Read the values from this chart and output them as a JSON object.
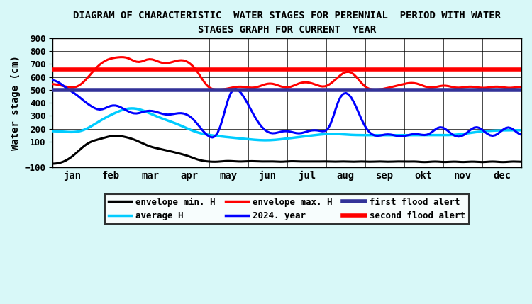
{
  "title": "DIAGRAM OF CHARACTERISTIC  WATER STAGES FOR PERENNIAL  PERIOD WITH WATER\nSTAGES GRAPH FOR CURRENT  YEAR",
  "ylabel": "Water stage (cm)",
  "xlabel_ticks": [
    "jan",
    "feb",
    "mar",
    "apr",
    "may",
    "jun",
    "jul",
    "aug",
    "sep",
    "okt",
    "nov",
    "dec"
  ],
  "ylim": [
    -100,
    900
  ],
  "yticks": [
    -100,
    100,
    200,
    300,
    400,
    500,
    600,
    700,
    800,
    900
  ],
  "background_color": "#d8f8f8",
  "plot_bg_color": "#ffffff",
  "first_flood_alert": 500,
  "second_flood_alert": 660,
  "envelope_max_color": "#ff0000",
  "envelope_min_color": "#000000",
  "average_color": "#00ccff",
  "year2024_color": "#0000ff",
  "first_alert_color": "#333399",
  "second_alert_color": "#ff0000",
  "envelope_min_data": [
    -70,
    -75,
    -72,
    -68,
    -60,
    -50,
    -40,
    -25,
    -10,
    10,
    30,
    50,
    70,
    90,
    100,
    105,
    110,
    115,
    120,
    125,
    130,
    140,
    145,
    148,
    150,
    148,
    145,
    140,
    135,
    130,
    125,
    120,
    110,
    100,
    90,
    80,
    70,
    60,
    55,
    50,
    48,
    45,
    40,
    35,
    30,
    25,
    20,
    15,
    10,
    5,
    0,
    -5,
    -10,
    -20,
    -30,
    -40,
    -45,
    -50,
    -52,
    -54,
    -55,
    -57,
    -58,
    -60,
    -55,
    -50,
    -48,
    -45,
    -50,
    -52,
    -54,
    -55,
    -57,
    -55,
    -52,
    -50,
    -48,
    -50,
    -52,
    -55,
    -57,
    -55,
    -52,
    -50,
    -52,
    -54,
    -56,
    -58,
    -60,
    -55,
    -50,
    -48,
    -50,
    -52,
    -55,
    -57,
    -55,
    -52,
    -50,
    -52,
    -55,
    -57,
    -55,
    -52,
    -50,
    -52,
    -55,
    -57,
    -58,
    -55,
    -52,
    -50,
    -52,
    -55,
    -60,
    -58,
    -55,
    -52,
    -50,
    -52,
    -55,
    -60,
    -58,
    -55,
    -52,
    -50,
    -52,
    -55,
    -60,
    -58,
    -55,
    -52,
    -50,
    -52,
    -55,
    -60,
    -55,
    -52,
    -50,
    -52,
    -55,
    -60,
    -65,
    -60,
    -55,
    -52,
    -50,
    -52,
    -55,
    -60,
    -65,
    -60,
    -52,
    -50,
    -52,
    -55,
    -60,
    -65,
    -60,
    -52,
    -50,
    -52,
    -55,
    -60,
    -65,
    -60,
    -55,
    -52,
    -50,
    -52,
    -55,
    -60,
    -65,
    -60,
    -55,
    -52,
    -50,
    -52,
    -55,
    -60
  ],
  "envelope_max_data": [
    550,
    545,
    540,
    535,
    530,
    525,
    520,
    515,
    510,
    510,
    520,
    540,
    560,
    580,
    610,
    640,
    660,
    680,
    700,
    720,
    730,
    740,
    745,
    748,
    750,
    752,
    755,
    758,
    760,
    755,
    740,
    720,
    700,
    690,
    710,
    730,
    750,
    755,
    745,
    730,
    720,
    710,
    700,
    695,
    700,
    710,
    720,
    725,
    730,
    735,
    740,
    735,
    720,
    700,
    680,
    660,
    630,
    590,
    540,
    500,
    500,
    500,
    500,
    500,
    500,
    500,
    505,
    510,
    515,
    520,
    525,
    530,
    530,
    525,
    520,
    515,
    510,
    510,
    515,
    525,
    535,
    545,
    555,
    560,
    555,
    545,
    535,
    525,
    515,
    510,
    510,
    515,
    530,
    545,
    555,
    560,
    565,
    565,
    560,
    555,
    545,
    535,
    525,
    515,
    510,
    520,
    540,
    560,
    580,
    600,
    620,
    640,
    655,
    660,
    650,
    635,
    610,
    580,
    540,
    510,
    500,
    500,
    500,
    500,
    500,
    500,
    505,
    510,
    515,
    520,
    525,
    530,
    535,
    540,
    545,
    550,
    555,
    560,
    560,
    555,
    545,
    535,
    525,
    515,
    510,
    510,
    515,
    525,
    535,
    540,
    540,
    535,
    525,
    515,
    510,
    510,
    515,
    520,
    525,
    530,
    530,
    525,
    520,
    515,
    510,
    510,
    515,
    520,
    525,
    530,
    530,
    525,
    520,
    515,
    510,
    510,
    515,
    520,
    525,
    530
  ],
  "average_data": [
    185,
    183,
    181,
    179,
    177,
    175,
    172,
    170,
    168,
    168,
    170,
    175,
    180,
    190,
    205,
    220,
    235,
    250,
    265,
    275,
    285,
    295,
    305,
    315,
    325,
    335,
    345,
    355,
    360,
    365,
    368,
    368,
    365,
    358,
    350,
    340,
    330,
    320,
    310,
    300,
    290,
    280,
    275,
    270,
    265,
    258,
    250,
    243,
    235,
    225,
    215,
    205,
    195,
    185,
    175,
    168,
    162,
    158,
    155,
    152,
    150,
    148,
    145,
    143,
    140,
    138,
    136,
    134,
    132,
    130,
    128,
    126,
    124,
    122,
    120,
    118,
    116,
    114,
    112,
    110,
    108,
    108,
    108,
    108,
    110,
    112,
    115,
    118,
    120,
    122,
    125,
    128,
    130,
    133,
    136,
    138,
    140,
    142,
    145,
    148,
    150,
    152,
    155,
    158,
    160,
    162,
    163,
    163,
    162,
    160,
    158,
    156,
    154,
    152,
    150,
    150,
    150,
    150,
    150,
    150,
    150,
    150,
    150,
    150,
    150,
    150,
    150,
    150,
    150,
    150,
    150,
    150,
    150,
    150,
    150,
    150,
    150,
    150,
    150,
    150,
    150,
    150,
    150,
    150,
    150,
    150,
    150,
    150,
    150,
    150,
    150,
    150,
    150,
    150,
    150,
    150,
    155,
    160,
    165,
    168,
    170,
    172,
    175,
    178,
    180,
    182,
    183,
    184,
    185,
    186,
    187,
    188,
    188,
    188,
    188,
    188,
    188,
    188,
    188,
    188
  ],
  "year2024_data": [
    580,
    575,
    565,
    550,
    535,
    515,
    500,
    490,
    480,
    465,
    450,
    430,
    410,
    395,
    385,
    370,
    355,
    345,
    340,
    345,
    355,
    370,
    380,
    385,
    385,
    378,
    368,
    355,
    342,
    330,
    320,
    315,
    310,
    318,
    328,
    335,
    340,
    342,
    340,
    335,
    328,
    320,
    312,
    308,
    305,
    308,
    312,
    318,
    322,
    325,
    322,
    315,
    305,
    290,
    270,
    245,
    218,
    190,
    165,
    145,
    130,
    120,
    115,
    140,
    190,
    270,
    370,
    445,
    510,
    530,
    525,
    505,
    480,
    450,
    415,
    375,
    335,
    295,
    260,
    230,
    205,
    185,
    170,
    162,
    158,
    162,
    170,
    178,
    183,
    185,
    183,
    178,
    170,
    162,
    158,
    162,
    170,
    178,
    185,
    190,
    192,
    190,
    185,
    178,
    170,
    165,
    200,
    270,
    360,
    430,
    470,
    490,
    492,
    480,
    455,
    415,
    365,
    315,
    265,
    220,
    185,
    162,
    148,
    140,
    140,
    145,
    152,
    158,
    160,
    158,
    152,
    145,
    140,
    138,
    140,
    145,
    152,
    158,
    162,
    162,
    158,
    150,
    145,
    145,
    155,
    172,
    195,
    215,
    225,
    218,
    202,
    182,
    162,
    145,
    135,
    130,
    135,
    145,
    162,
    182,
    202,
    218,
    225,
    215,
    195,
    175,
    155,
    140,
    135,
    140,
    155,
    175,
    195,
    215,
    225,
    215,
    195,
    175,
    155,
    140
  ]
}
